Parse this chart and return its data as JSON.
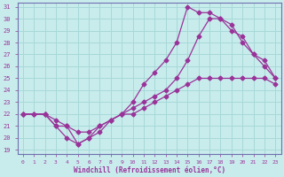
{
  "xlabel": "Windchill (Refroidissement éolien,°C)",
  "bg_color": "#c8ecec",
  "grid_color": "#a8d8d8",
  "line_color": "#993399",
  "spine_color": "#7070b0",
  "xlim": [
    0,
    23
  ],
  "ylim": [
    19,
    31
  ],
  "xticks": [
    0,
    1,
    2,
    3,
    4,
    5,
    6,
    7,
    8,
    9,
    10,
    11,
    12,
    13,
    14,
    15,
    16,
    17,
    18,
    19,
    20,
    21,
    22,
    23
  ],
  "yticks": [
    19,
    20,
    21,
    22,
    23,
    24,
    25,
    26,
    27,
    28,
    29,
    30,
    31
  ],
  "line1_x": [
    0,
    1,
    2,
    3,
    4,
    5,
    6,
    7,
    8,
    9,
    10,
    11,
    12,
    13,
    14,
    15,
    16,
    17,
    18,
    19,
    20,
    21,
    22,
    23
  ],
  "line1_y": [
    22.0,
    22.0,
    22.0,
    21.0,
    21.0,
    20.5,
    20.5,
    21.0,
    21.5,
    22.0,
    22.0,
    22.5,
    23.0,
    23.5,
    24.0,
    24.5,
    25.0,
    25.0,
    25.0,
    25.0,
    25.0,
    25.0,
    25.0,
    24.5
  ],
  "line2_x": [
    0,
    2,
    3,
    4,
    5,
    6,
    7,
    8,
    9,
    10,
    11,
    12,
    13,
    14,
    15,
    16,
    17,
    18,
    19,
    20,
    21,
    22,
    23
  ],
  "line2_y": [
    22.0,
    22.0,
    21.5,
    21.0,
    19.5,
    20.0,
    20.5,
    21.5,
    22.0,
    23.0,
    24.5,
    25.5,
    26.5,
    28.0,
    31.0,
    30.5,
    30.5,
    30.0,
    29.5,
    28.0,
    27.0,
    26.0,
    25.0
  ],
  "line3_x": [
    0,
    1,
    2,
    3,
    4,
    5,
    6,
    7,
    8,
    9,
    10,
    11,
    12,
    13,
    14,
    15,
    16,
    17,
    18,
    19,
    20,
    21,
    22,
    23
  ],
  "line3_y": [
    22.0,
    22.0,
    22.0,
    21.0,
    20.0,
    19.5,
    20.0,
    21.0,
    21.5,
    22.0,
    22.5,
    23.0,
    23.5,
    24.0,
    25.0,
    26.5,
    28.5,
    30.0,
    30.0,
    29.0,
    28.5,
    27.0,
    26.5,
    25.0
  ]
}
